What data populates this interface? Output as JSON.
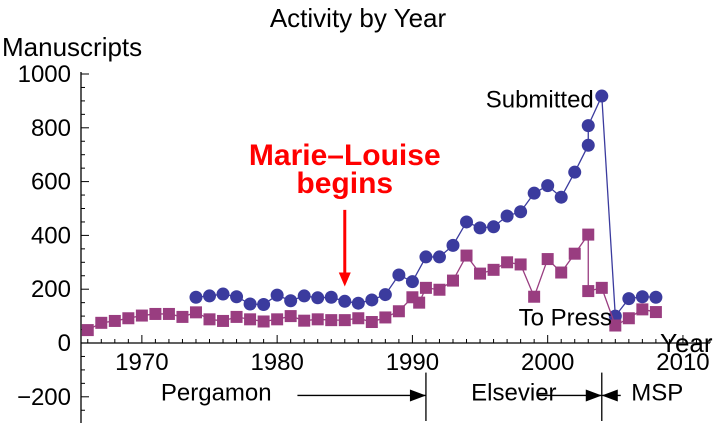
{
  "chart_data": {
    "type": "line",
    "title": "Activity  by Year",
    "xlabel": "Year",
    "ylabel": "Manuscripts",
    "xlim": [
      1965.5,
      2012
    ],
    "ylim": [
      -300,
      1000
    ],
    "x_ticks": [
      1970,
      1980,
      1990,
      2000,
      2010
    ],
    "y_ticks": [
      -200,
      0,
      200,
      400,
      600,
      800,
      1000
    ],
    "x_minor_step": 1,
    "y_minor_step": 50,
    "grid": false,
    "series": [
      {
        "name": "Submitted",
        "color": "#3b3b9e",
        "marker": "circle",
        "points": [
          [
            1974,
            170
          ],
          [
            1975,
            175
          ],
          [
            1976,
            182
          ],
          [
            1977,
            172
          ],
          [
            1978,
            145
          ],
          [
            1979,
            143
          ],
          [
            1980,
            178
          ],
          [
            1981,
            157
          ],
          [
            1982,
            175
          ],
          [
            1983,
            168
          ],
          [
            1984,
            170
          ],
          [
            1985,
            155
          ],
          [
            1986,
            148
          ],
          [
            1987,
            160
          ],
          [
            1988,
            180
          ],
          [
            1989,
            253
          ],
          [
            1990,
            228
          ],
          [
            1991,
            320
          ],
          [
            1992,
            320
          ],
          [
            1993,
            363
          ],
          [
            1994,
            450
          ],
          [
            1995,
            428
          ],
          [
            1996,
            432
          ],
          [
            1997,
            472
          ],
          [
            1998,
            488
          ],
          [
            1999,
            557
          ],
          [
            2000,
            585
          ],
          [
            2001,
            542
          ],
          [
            2002,
            635
          ],
          [
            2003,
            735
          ],
          [
            2003,
            808
          ],
          [
            2004,
            918
          ],
          [
            2005,
            100
          ],
          [
            2006,
            165
          ],
          [
            2007,
            172
          ],
          [
            2008,
            170
          ]
        ]
      },
      {
        "name": "To Press",
        "color": "#993d80",
        "marker": "square",
        "points": [
          [
            1966,
            48
          ],
          [
            1967,
            75
          ],
          [
            1968,
            82
          ],
          [
            1969,
            92
          ],
          [
            1970,
            102
          ],
          [
            1971,
            108
          ],
          [
            1972,
            108
          ],
          [
            1973,
            97
          ],
          [
            1974,
            114
          ],
          [
            1975,
            88
          ],
          [
            1976,
            82
          ],
          [
            1977,
            97
          ],
          [
            1978,
            88
          ],
          [
            1979,
            80
          ],
          [
            1980,
            88
          ],
          [
            1981,
            100
          ],
          [
            1982,
            83
          ],
          [
            1983,
            88
          ],
          [
            1984,
            85
          ],
          [
            1985,
            85
          ],
          [
            1986,
            92
          ],
          [
            1987,
            78
          ],
          [
            1988,
            95
          ],
          [
            1989,
            118
          ],
          [
            1990,
            170
          ],
          [
            1990.5,
            150
          ],
          [
            1991,
            205
          ],
          [
            1992,
            198
          ],
          [
            1993,
            232
          ],
          [
            1994,
            325
          ],
          [
            1995,
            258
          ],
          [
            1996,
            272
          ],
          [
            1997,
            300
          ],
          [
            1998,
            292
          ],
          [
            1999,
            172
          ],
          [
            2000,
            312
          ],
          [
            2001,
            262
          ],
          [
            2002,
            332
          ],
          [
            2003,
            403
          ],
          [
            2003,
            193
          ],
          [
            2004,
            205
          ],
          [
            2005,
            65
          ],
          [
            2006,
            92
          ],
          [
            2007,
            125
          ],
          [
            2008,
            115
          ]
        ]
      }
    ],
    "annotations": {
      "marie": {
        "line1": "Marie–Louise",
        "line2": "begins",
        "x": 1985,
        "arrow_top": 495,
        "arrow_bottom": 210
      },
      "submitted_label": {
        "text": "Submitted",
        "x": 2004,
        "y": 905
      },
      "to_press_label": {
        "text": "To Press",
        "x": 2001.3,
        "y": 95
      }
    },
    "eras": {
      "y": -195,
      "dividers": [
        1991,
        2004
      ],
      "divider_range": [
        -110,
        -290
      ],
      "arrows": [
        {
          "from": 1981.5,
          "to": 1991,
          "direction": "right"
        },
        {
          "from": 1999.3,
          "to": 2004,
          "direction": "right"
        },
        {
          "from": 2004,
          "to": 2005.4,
          "direction": "left"
        }
      ],
      "labels": [
        {
          "text": "Pergamon",
          "x": 1975.5
        },
        {
          "text": "Elsevier",
          "x": 1997.5
        },
        {
          "text": "MSP",
          "x": 2008.1
        }
      ]
    }
  }
}
